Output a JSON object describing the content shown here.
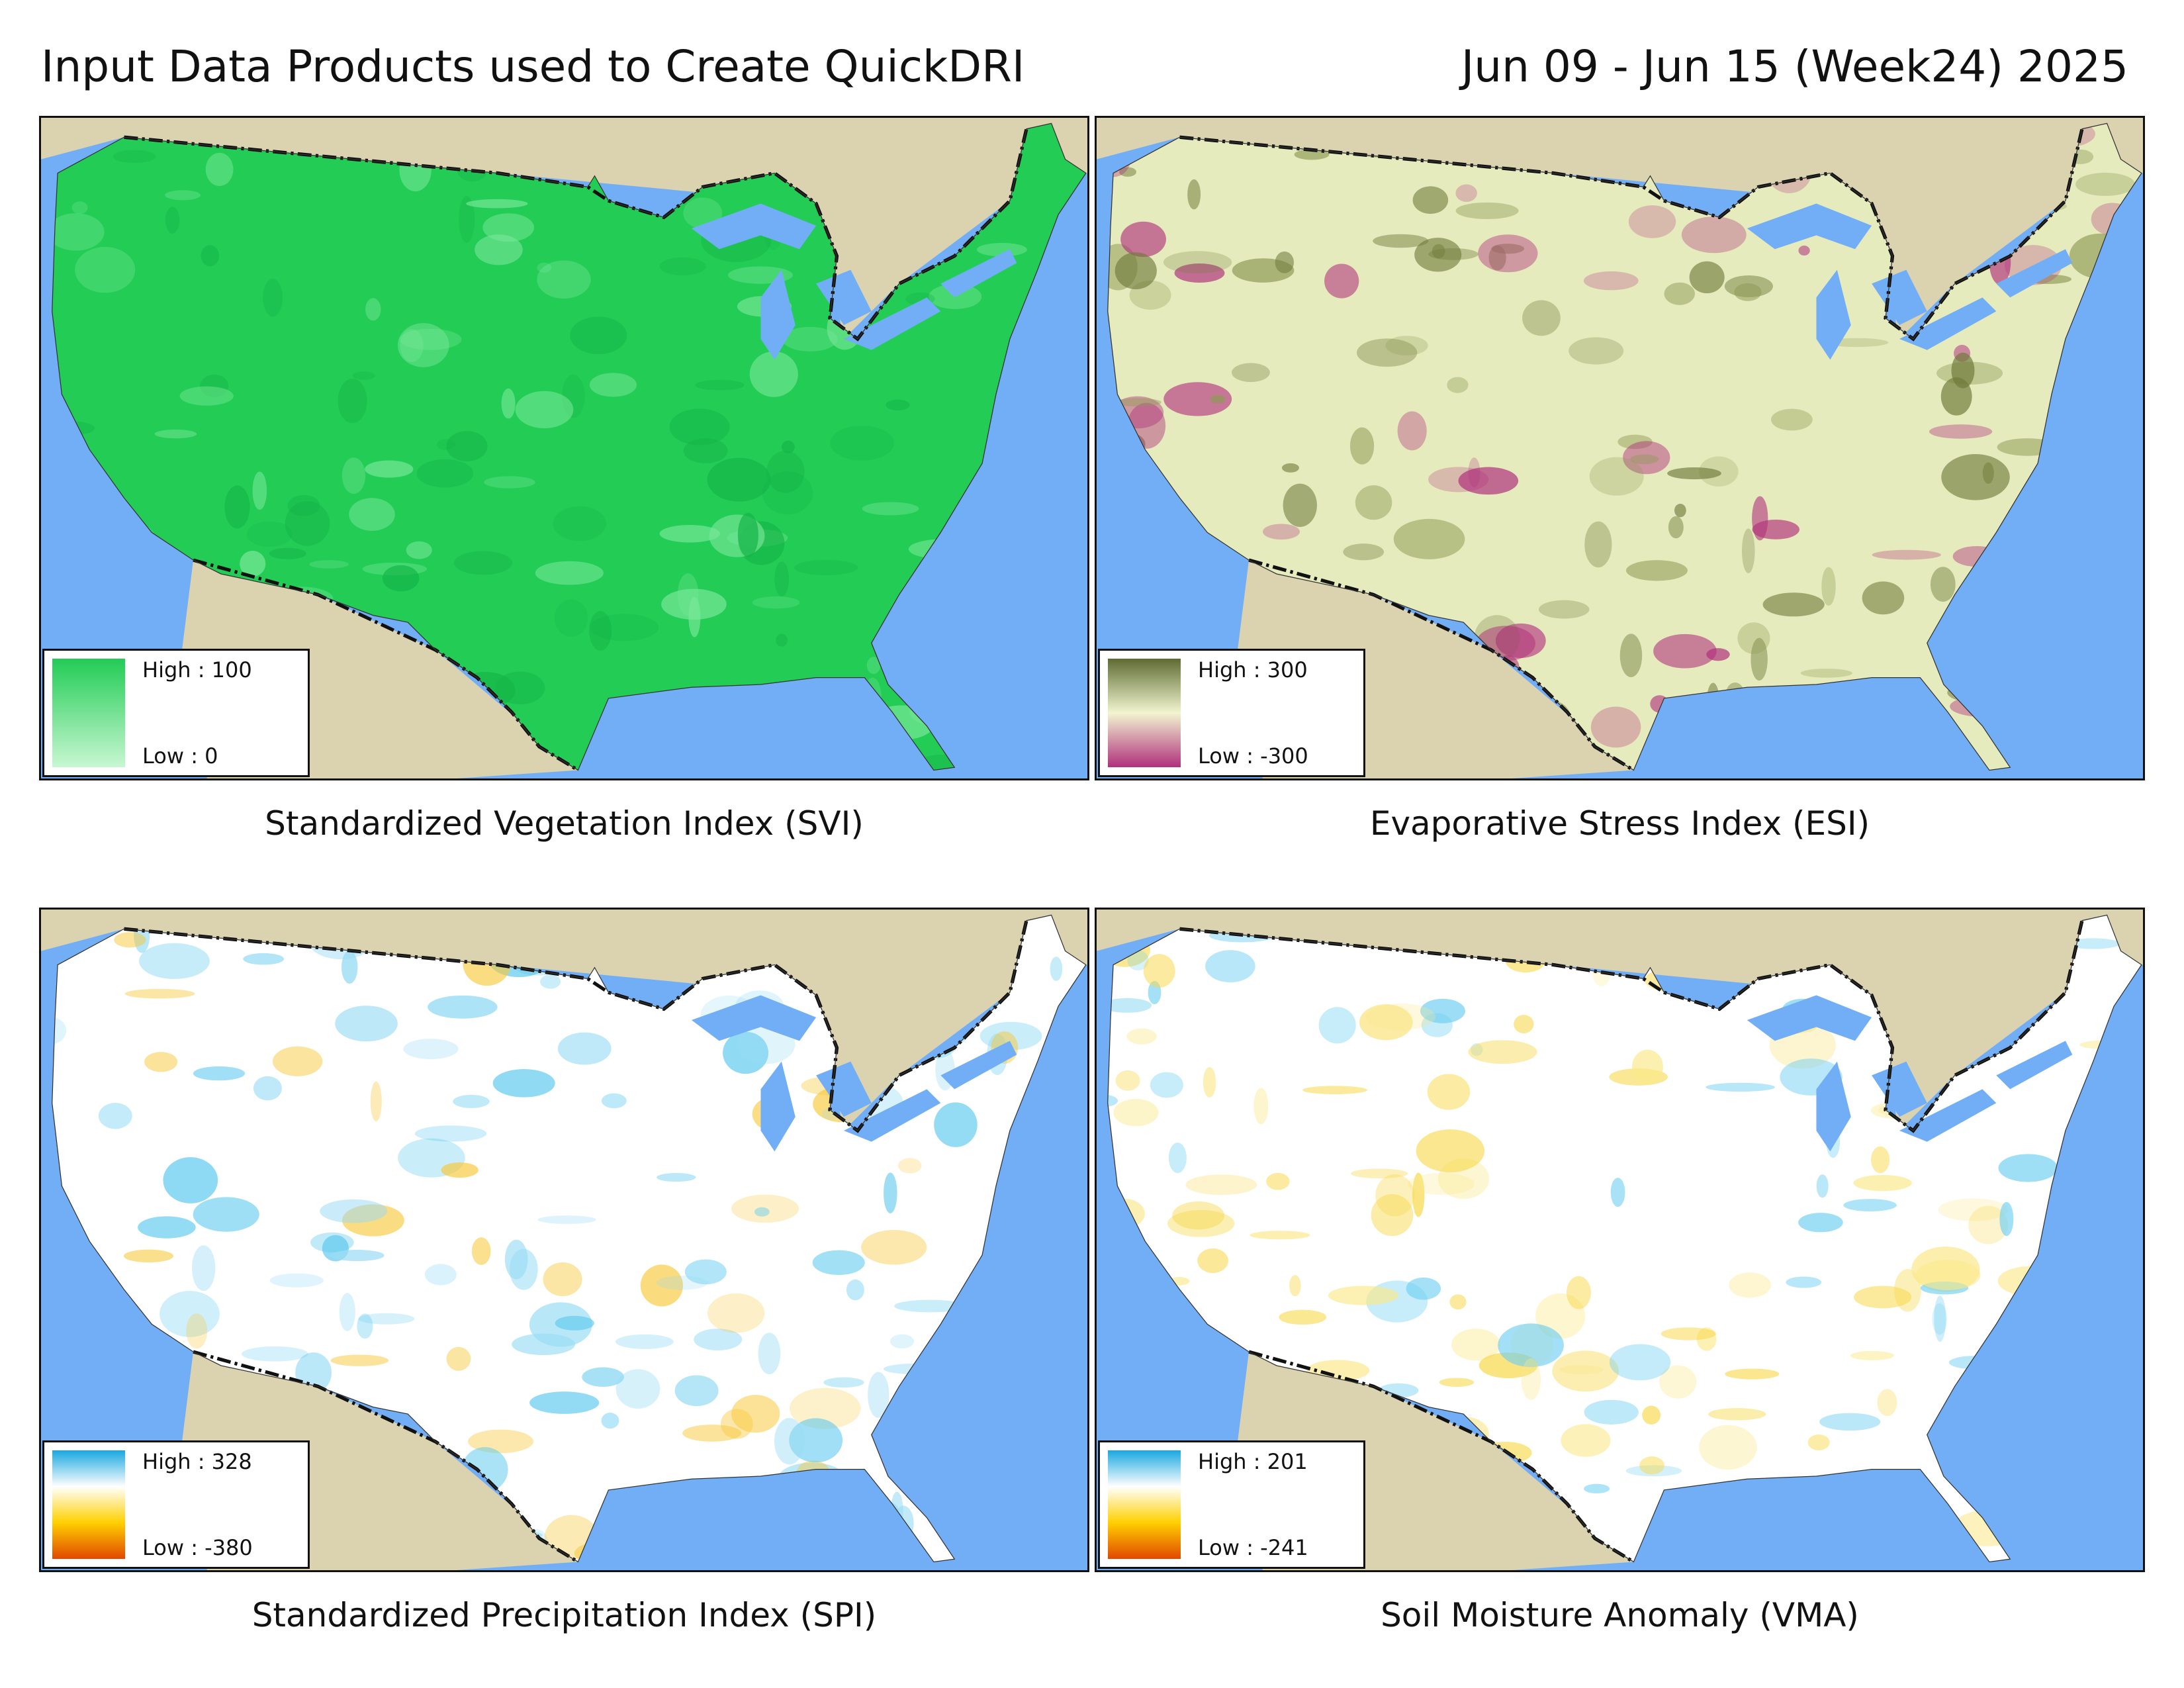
{
  "header": {
    "title": "Input Data Products used to Create QuickDRI",
    "date": "Jun 09 - Jun 15 (Week24) 2025"
  },
  "panels": [
    {
      "caption": "Standardized Vegetation Index (SVI)",
      "legend": {
        "high": "High : 100",
        "low": "Low : 0"
      }
    },
    {
      "caption": "Evaporative Stress Index (ESI)",
      "legend": {
        "high": "High : 300",
        "low": "Low : -300"
      }
    },
    {
      "caption": "Standardized Precipitation Index (SPI)",
      "legend": {
        "high": "High : 328",
        "low": "Low : -380"
      }
    },
    {
      "caption": "Soil Moisture Anomaly (VMA)",
      "legend": {
        "high": "High : 201",
        "low": "Low : -241"
      }
    }
  ]
}
